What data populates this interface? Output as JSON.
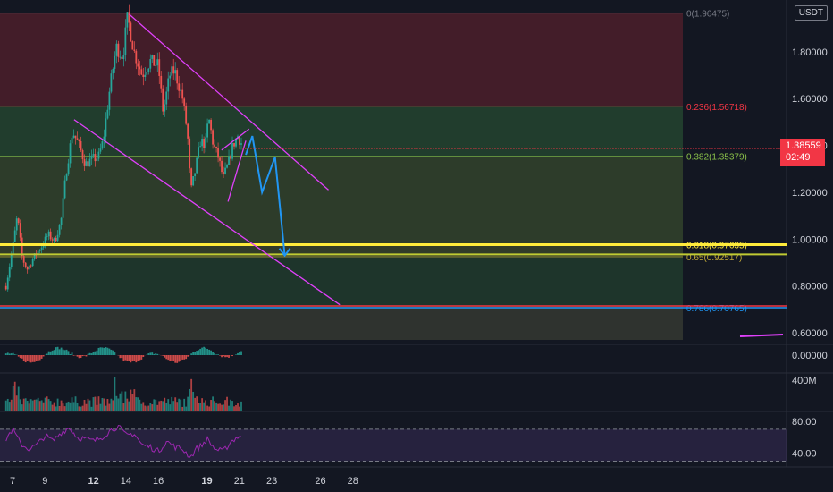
{
  "symbol_badge": "USDT",
  "current_price": {
    "price": "1.38559",
    "countdown": "02:49",
    "value": 1.38559,
    "color": "#f23645"
  },
  "colors": {
    "bg": "#131722",
    "up": "#26a69a",
    "down": "#ef5350",
    "trend": "#e040fb",
    "projection": "#2196f3",
    "rsi": "#9c27b0",
    "grid": "#1e222d",
    "text": "#d1d4dc"
  },
  "chart_data": [
    {
      "type": "candlestick",
      "name": "price",
      "price_axis": {
        "ylim": [
          0.57,
          1.99
        ],
        "ticks": [
          0.6,
          0.8,
          1.0,
          1.2,
          1.4,
          1.6,
          1.8
        ],
        "tick_labels": [
          "0.60000",
          "0.80000",
          "1.00000",
          "1.20000",
          "1.40000",
          "1.60000",
          "1.80000"
        ]
      },
      "time_axis": {
        "day_range": [
          6.6,
          28.9
        ],
        "ticks": [
          7,
          9,
          12,
          14,
          16,
          19,
          21,
          23,
          26,
          28
        ],
        "tick_labels": [
          "7",
          "9",
          "12",
          "14",
          "16",
          "19",
          "21",
          "23",
          "26",
          "28"
        ],
        "bold": [
          "12",
          "19"
        ]
      },
      "close_path": [
        [
          6.6,
          0.8
        ],
        [
          7.0,
          0.96
        ],
        [
          7.3,
          1.1
        ],
        [
          7.6,
          0.92
        ],
        [
          7.9,
          0.87
        ],
        [
          8.3,
          0.92
        ],
        [
          8.8,
          0.97
        ],
        [
          9.2,
          1.02
        ],
        [
          9.6,
          0.99
        ],
        [
          10.0,
          1.08
        ],
        [
          10.3,
          1.28
        ],
        [
          10.7,
          1.46
        ],
        [
          11.1,
          1.4
        ],
        [
          11.5,
          1.32
        ],
        [
          11.9,
          1.34
        ],
        [
          12.3,
          1.35
        ],
        [
          12.6,
          1.42
        ],
        [
          13.0,
          1.64
        ],
        [
          13.4,
          1.82
        ],
        [
          13.8,
          1.78
        ],
        [
          14.1,
          1.95
        ],
        [
          14.5,
          1.8
        ],
        [
          15.0,
          1.7
        ],
        [
          15.5,
          1.76
        ],
        [
          16.0,
          1.74
        ],
        [
          16.3,
          1.54
        ],
        [
          16.7,
          1.7
        ],
        [
          17.0,
          1.72
        ],
        [
          17.5,
          1.6
        ],
        [
          17.8,
          1.45
        ],
        [
          18.0,
          1.2
        ],
        [
          18.3,
          1.3
        ],
        [
          18.6,
          1.42
        ],
        [
          18.9,
          1.4
        ],
        [
          19.1,
          1.52
        ],
        [
          19.4,
          1.4
        ],
        [
          19.7,
          1.35
        ],
        [
          20.0,
          1.26
        ],
        [
          20.3,
          1.32
        ],
        [
          20.6,
          1.4
        ],
        [
          20.9,
          1.44
        ],
        [
          21.2,
          1.4
        ]
      ],
      "fib_retracement": [
        {
          "label": "0(1.96475)",
          "value": 1.96475,
          "color": "#787b86"
        },
        {
          "label": "0.236(1.56718)",
          "value": 1.56718,
          "color": "#f23645"
        },
        {
          "label": "0.382(1.35379)",
          "value": 1.35379,
          "color": "#8bc34a"
        },
        {
          "label": "0.618(0.97635)",
          "value": 0.97635,
          "color": "#ffeb3b"
        },
        {
          "label": "0.65(0.92517)",
          "value": 0.92517,
          "color": "#c0a838"
        },
        {
          "label": "0.786(0.70765)",
          "value": 0.70765,
          "color": "#2196f3"
        }
      ],
      "horizontal_lines": [
        {
          "value": 0.97635,
          "color": "#ffeb3b",
          "width": 3
        },
        {
          "value": 0.935,
          "color": "#c0ca33",
          "width": 2
        },
        {
          "value": 0.715,
          "color": "#f23645",
          "width": 1.5
        },
        {
          "value": 0.70765,
          "color": "#2196f3",
          "width": 1.5
        }
      ],
      "trendlines": [
        {
          "from": [
            14.2,
            1.96
          ],
          "to": [
            26.5,
            1.21
          ]
        },
        {
          "from": [
            10.8,
            1.51
          ],
          "to": [
            27.2,
            0.72
          ]
        }
      ],
      "wedge": {
        "upper": [
          [
            19.9,
            1.38
          ],
          [
            21.6,
            1.47
          ]
        ],
        "lower": [
          [
            20.3,
            1.16
          ],
          [
            21.4,
            1.42
          ]
        ]
      },
      "projection_path": [
        [
          21.4,
          1.36
        ],
        [
          21.8,
          1.44
        ],
        [
          22.4,
          1.2
        ],
        [
          23.2,
          1.35
        ],
        [
          23.8,
          0.93
        ]
      ]
    },
    {
      "type": "histogram",
      "name": "macd",
      "ticks": [
        0.0
      ],
      "tick_labels": [
        "0.00000"
      ]
    },
    {
      "type": "bar",
      "name": "volume",
      "ticks": [
        400
      ],
      "tick_labels": [
        "400M"
      ]
    },
    {
      "type": "line",
      "name": "rsi",
      "ylim": [
        25,
        90
      ],
      "ticks": [
        80,
        40
      ],
      "tick_labels": [
        "80.00",
        "40.00"
      ],
      "bands": [
        70,
        30
      ],
      "values": [
        [
          6.6,
          58
        ],
        [
          7.0,
          70
        ],
        [
          7.5,
          52
        ],
        [
          8.0,
          45
        ],
        [
          8.5,
          50
        ],
        [
          9.0,
          62
        ],
        [
          9.5,
          55
        ],
        [
          10.0,
          66
        ],
        [
          10.5,
          72
        ],
        [
          11.0,
          60
        ],
        [
          11.5,
          58
        ],
        [
          12.0,
          55
        ],
        [
          12.5,
          60
        ],
        [
          13.0,
          68
        ],
        [
          13.5,
          74
        ],
        [
          14.0,
          62
        ],
        [
          14.5,
          65
        ],
        [
          15.0,
          50
        ],
        [
          15.5,
          48
        ],
        [
          16.0,
          42
        ],
        [
          16.5,
          55
        ],
        [
          17.0,
          48
        ],
        [
          17.5,
          45
        ],
        [
          18.0,
          35
        ],
        [
          18.3,
          45
        ],
        [
          18.7,
          50
        ],
        [
          19.0,
          58
        ],
        [
          19.5,
          45
        ],
        [
          20.0,
          42
        ],
        [
          20.5,
          55
        ],
        [
          21.0,
          62
        ],
        [
          21.4,
          55
        ]
      ]
    }
  ]
}
